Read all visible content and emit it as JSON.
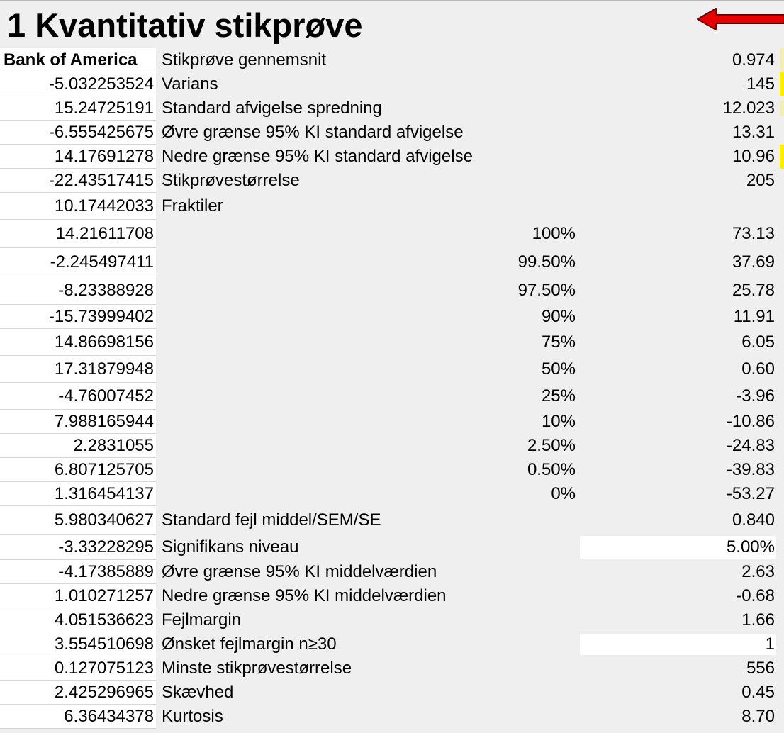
{
  "title": "1 Kvantitativ stikprøve",
  "header": {
    "column_a": "Bank of America",
    "label": "Stikprøve gennemsnit",
    "value": "0.974"
  },
  "colors": {
    "arrow": "#e60000",
    "marker_yellow": "#ffee00",
    "marker_pale": "#f2eeb8"
  },
  "rows": [
    {
      "a": "-5.032253524",
      "label": "Varians",
      "percent": "",
      "value": "145",
      "marker": "yellow"
    },
    {
      "a": "15.24725191",
      "label": "Standard afvigelse spredning",
      "percent": "",
      "value": "12.023",
      "marker": "pale"
    },
    {
      "a": "-6.555425675",
      "label": "Øvre grænse 95% KI standard afvigelse",
      "percent": "",
      "value": "13.31",
      "marker": ""
    },
    {
      "a": "14.17691278",
      "label": "Nedre grænse 95% KI standard afvigelse",
      "percent": "",
      "value": "10.96",
      "marker": "yellow"
    },
    {
      "a": "-22.43517415",
      "label": "Stikprøvestørrelse",
      "percent": "",
      "value": "205",
      "marker": ""
    },
    {
      "a": "10.17442033",
      "label": "Fraktiler",
      "percent": "",
      "value": "",
      "marker": ""
    },
    {
      "a": "14.21611708",
      "label": "",
      "percent": "100%",
      "value": "73.13",
      "marker": ""
    },
    {
      "a": "-2.245497411",
      "label": "",
      "percent": "99.50%",
      "value": "37.69",
      "marker": ""
    },
    {
      "a": "-8.23388928",
      "label": "",
      "percent": "97.50%",
      "value": "25.78",
      "marker": ""
    },
    {
      "a": "-15.73999402",
      "label": "",
      "percent": "90%",
      "value": "11.91",
      "marker": ""
    },
    {
      "a": "14.86698156",
      "label": "",
      "percent": "75%",
      "value": "6.05",
      "marker": ""
    },
    {
      "a": "17.31879948",
      "label": "",
      "percent": "50%",
      "value": "0.60",
      "marker": ""
    },
    {
      "a": "-4.76007452",
      "label": "",
      "percent": "25%",
      "value": "-3.96",
      "marker": ""
    },
    {
      "a": "7.988165944",
      "label": "",
      "percent": "10%",
      "value": "-10.86",
      "marker": ""
    },
    {
      "a": "2.2831055",
      "label": "",
      "percent": "2.50%",
      "value": "-24.83",
      "marker": ""
    },
    {
      "a": "6.807125705",
      "label": "",
      "percent": "0.50%",
      "value": "-39.83",
      "marker": ""
    },
    {
      "a": "1.316454137",
      "label": "",
      "percent": "0%",
      "value": "-53.27",
      "marker": ""
    },
    {
      "a": "5.980340627",
      "label": "Standard fejl middel/SEM/SE",
      "percent": "",
      "value": "0.840",
      "marker": ""
    },
    {
      "a": "-3.33228295",
      "label": "Signifikans niveau",
      "percent": "",
      "value": "5.00%",
      "input": true,
      "marker": ""
    },
    {
      "a": "-4.17385889",
      "label": "Øvre grænse 95% KI middelværdien",
      "percent": "",
      "value": "2.63",
      "marker": ""
    },
    {
      "a": "1.010271257",
      "label": "Nedre grænse 95% KI middelværdien",
      "percent": "",
      "value": "-0.68",
      "marker": ""
    },
    {
      "a": "4.051536623",
      "label": "Fejlmargin",
      "percent": "",
      "value": "1.66",
      "marker": ""
    },
    {
      "a": "3.554510698",
      "label": "Ønsket fejlmargin n≥30",
      "percent": "",
      "value": "1",
      "input": true,
      "marker": ""
    },
    {
      "a": "0.127075123",
      "label": "Minste stikprøvestørrelse",
      "percent": "",
      "value": "556",
      "marker": ""
    },
    {
      "a": "2.425296965",
      "label": "Skævhed",
      "percent": "",
      "value": "0.45",
      "marker": ""
    },
    {
      "a": "6.36434378",
      "label": "Kurtosis",
      "percent": "",
      "value": "8.70",
      "marker": ""
    }
  ]
}
